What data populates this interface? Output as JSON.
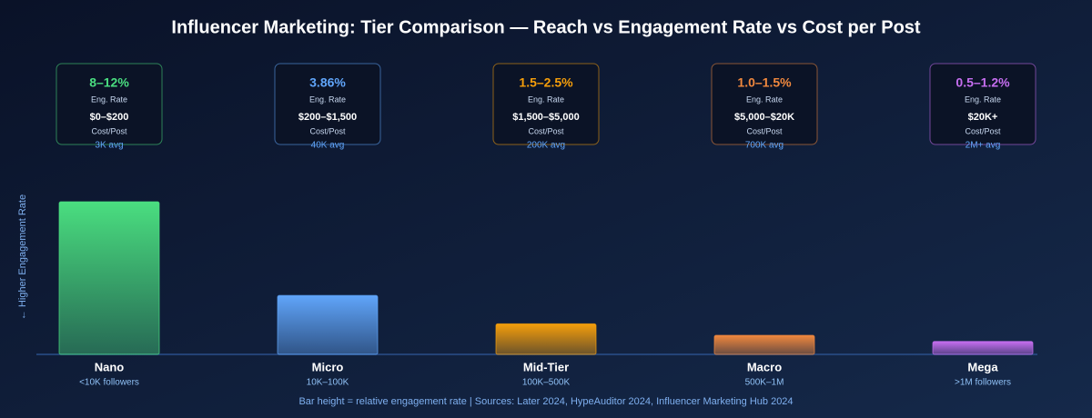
{
  "chart_data": {
    "type": "bar",
    "title": "Influencer Marketing: Tier Comparison — Reach vs Engagement Rate vs Cost per Post",
    "y_label": "← Higher Engagement Rate",
    "footnote": "Bar height = relative engagement rate | Sources: Later 2024, HypeAuditor 2024, Influencer Marketing Hub 2024",
    "categories": [
      "Nano",
      "Micro",
      "Mid-Tier",
      "Macro",
      "Mega"
    ],
    "follower_ranges": [
      "<10K followers",
      "10K–100K",
      "100K–500K",
      "500K–1M",
      ">1M followers"
    ],
    "values": [
      10,
      3.86,
      2,
      1.25,
      0.85
    ],
    "ylim": [
      0,
      10
    ],
    "colors": [
      "#4ade80",
      "#60a5fa",
      "#f59e0b",
      "#f0883e",
      "#c66ef0"
    ],
    "engagement_labels": [
      "8–12%",
      "3.86%",
      "1.5–2.5%",
      "1.0–1.5%",
      "0.5–1.2%"
    ],
    "rate_caption": "Eng. Rate",
    "costs": [
      "$0–$200",
      "$200–$1,500",
      "$1,500–$5,000",
      "$5,000–$20K",
      "$20K+"
    ],
    "cost_caption": "Cost/Post",
    "avg_reach": [
      "3K avg",
      "40K avg",
      "200K avg",
      "700K avg",
      "2M+ avg"
    ]
  }
}
